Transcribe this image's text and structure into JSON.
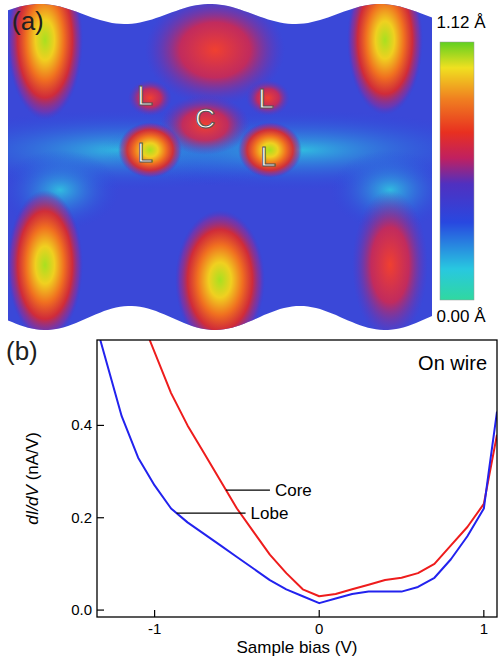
{
  "chart_data": [
    {
      "type": "image",
      "panel": "(a)",
      "annotations": [
        "L",
        "C",
        "L",
        "L",
        "L"
      ],
      "colorbar": {
        "range": [
          0,
          1.12
        ],
        "ticks": [
          {
            "value": 1.12,
            "label": "1.12 Å"
          },
          {
            "value": 0,
            "label": "0.00 Å"
          }
        ]
      }
    },
    {
      "type": "line",
      "panel": "(b)",
      "title": "On wire",
      "x_label": "Sample bias (V)",
      "y_label": "dI/dV (nA/V)",
      "xlim": [
        -1.35,
        1.08
      ],
      "ylim": [
        -0.015,
        0.585
      ],
      "xticks": [
        -1,
        0,
        1
      ],
      "yticks": [
        {
          "value": 0,
          "label": "0.0"
        },
        {
          "value": 0.2,
          "label": "0.2"
        },
        {
          "value": 0.4,
          "label": "0.4"
        }
      ],
      "series": [
        {
          "name": "Core",
          "color": "#ee1c1c",
          "x": [
            -1.03,
            -0.9,
            -0.8,
            -0.7,
            -0.6,
            -0.5,
            -0.4,
            -0.3,
            -0.2,
            -0.1,
            0,
            0.1,
            0.2,
            0.3,
            0.4,
            0.5,
            0.6,
            0.7,
            0.8,
            0.9,
            1.0,
            1.08
          ],
          "values": [
            0.585,
            0.47,
            0.4,
            0.34,
            0.28,
            0.22,
            0.17,
            0.12,
            0.08,
            0.045,
            0.03,
            0.035,
            0.045,
            0.055,
            0.065,
            0.07,
            0.08,
            0.1,
            0.14,
            0.18,
            0.23,
            0.38
          ]
        },
        {
          "name": "Lobe",
          "color": "#2222ee",
          "x": [
            -1.33,
            -1.2,
            -1.1,
            -1.0,
            -0.9,
            -0.8,
            -0.7,
            -0.6,
            -0.5,
            -0.4,
            -0.3,
            -0.2,
            -0.1,
            0,
            0.1,
            0.2,
            0.3,
            0.4,
            0.5,
            0.6,
            0.7,
            0.8,
            0.9,
            1.0,
            1.03,
            1.08
          ],
          "values": [
            0.585,
            0.42,
            0.33,
            0.27,
            0.22,
            0.19,
            0.165,
            0.14,
            0.115,
            0.09,
            0.065,
            0.045,
            0.03,
            0.015,
            0.025,
            0.035,
            0.04,
            0.04,
            0.04,
            0.05,
            0.07,
            0.11,
            0.16,
            0.22,
            0.3,
            0.43
          ]
        }
      ]
    }
  ]
}
